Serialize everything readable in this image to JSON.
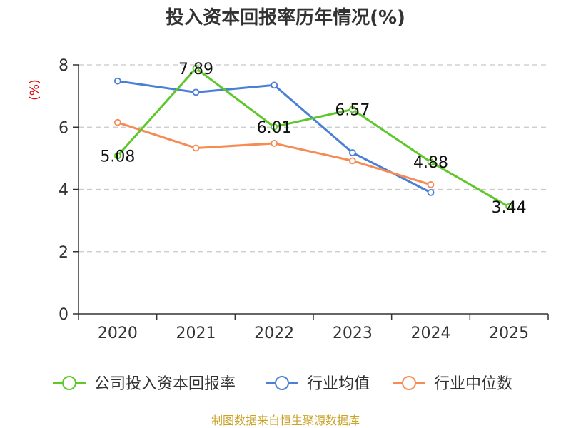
{
  "chart_data": {
    "type": "line",
    "title": "投入资本回报率历年情况(%)",
    "ylabel": "(%)",
    "xlabel": "",
    "categories": [
      "2020",
      "2021",
      "2022",
      "2023",
      "2024",
      "2025"
    ],
    "ylim": [
      0,
      8
    ],
    "yticks": [
      0,
      2,
      4,
      6,
      8
    ],
    "grid": true,
    "legend_position": "bottom",
    "series": [
      {
        "name": "公司投入资本回报率",
        "color": "#5ec82a",
        "values": [
          5.08,
          7.89,
          6.01,
          6.57,
          4.88,
          3.44
        ],
        "labels": [
          "5.08",
          "7.89",
          "6.01",
          "6.57",
          "4.88",
          "3.44"
        ]
      },
      {
        "name": "行业均值",
        "color": "#4a7fd8",
        "values": [
          7.48,
          7.12,
          7.35,
          5.18,
          3.9,
          null
        ]
      },
      {
        "name": "行业中位数",
        "color": "#f58c56",
        "values": [
          6.15,
          5.33,
          5.48,
          4.92,
          4.15,
          null
        ]
      }
    ]
  },
  "source": "制图数据来自恒生聚源数据库"
}
